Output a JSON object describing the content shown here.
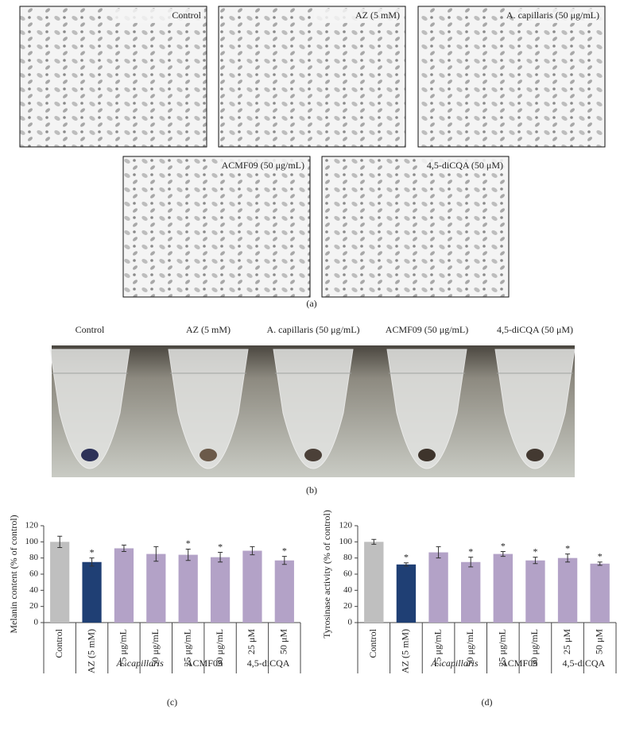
{
  "panels": {
    "a": {
      "label": "(a)",
      "images": [
        "Control",
        "AZ (5 mM)",
        "A. capillaris (50 μg/mL)",
        "ACMF09 (50 μg/mL)",
        "4,5-diCQA (50 μM)"
      ]
    },
    "b": {
      "label": "(b)",
      "tubes": [
        "Control",
        "AZ (5 mM)",
        "A. capillaris (50 μg/mL)",
        "ACMF09 (50 μg/mL)",
        "4,5-diCQA (50 μM)"
      ]
    }
  },
  "chart_data": [
    {
      "type": "bar",
      "panel_label": "(c)",
      "y_label": "Melanin content (% of control)",
      "categories": [
        "Control",
        "AZ (5 mM)",
        "25 μg/mL",
        "50 μg/mL",
        "25 μg/mL",
        "50 μg/mL",
        "25 μM",
        "50 μM"
      ],
      "groups": [
        null,
        null,
        "A. capillaris",
        null,
        "ACMF09",
        null,
        "4,5-diCQA",
        null
      ],
      "values": [
        100,
        75,
        92,
        85,
        84,
        81,
        89,
        77
      ],
      "errors": [
        7,
        5,
        4,
        9,
        7,
        6,
        5,
        5
      ],
      "markers": [
        null,
        "*",
        null,
        null,
        "*",
        "*",
        null,
        "*"
      ],
      "colors": [
        "#bfbfbf",
        "#1f3f74",
        "#b3a2c7",
        "#b3a2c7",
        "#b3a2c7",
        "#b3a2c7",
        "#b3a2c7",
        "#b3a2c7"
      ],
      "ylim": [
        0,
        120
      ],
      "yticks": [
        0,
        20,
        40,
        60,
        80,
        100,
        120
      ]
    },
    {
      "type": "bar",
      "panel_label": "(d)",
      "y_label": "Tyrosinase activity (% of control)",
      "categories": [
        "Control",
        "AZ (5 mM)",
        "25 μg/mL",
        "50 μg/mL",
        "25 μg/mL",
        "50 μg/mL",
        "25 μM",
        "50 μM"
      ],
      "groups": [
        null,
        null,
        "A. capillaris",
        null,
        "ACMF09",
        null,
        "4,5-diCQA",
        null
      ],
      "values": [
        100,
        72,
        87,
        75,
        85,
        77,
        80,
        73
      ],
      "errors": [
        3,
        2,
        7,
        6,
        3,
        4,
        5,
        2
      ],
      "markers": [
        null,
        "*",
        null,
        "*",
        "*",
        "*",
        "*",
        "*"
      ],
      "colors": [
        "#bfbfbf",
        "#1f3f74",
        "#b3a2c7",
        "#b3a2c7",
        "#b3a2c7",
        "#b3a2c7",
        "#b3a2c7",
        "#b3a2c7"
      ],
      "ylim": [
        0,
        120
      ],
      "yticks": [
        0,
        20,
        40,
        60,
        80,
        100,
        120
      ]
    }
  ]
}
